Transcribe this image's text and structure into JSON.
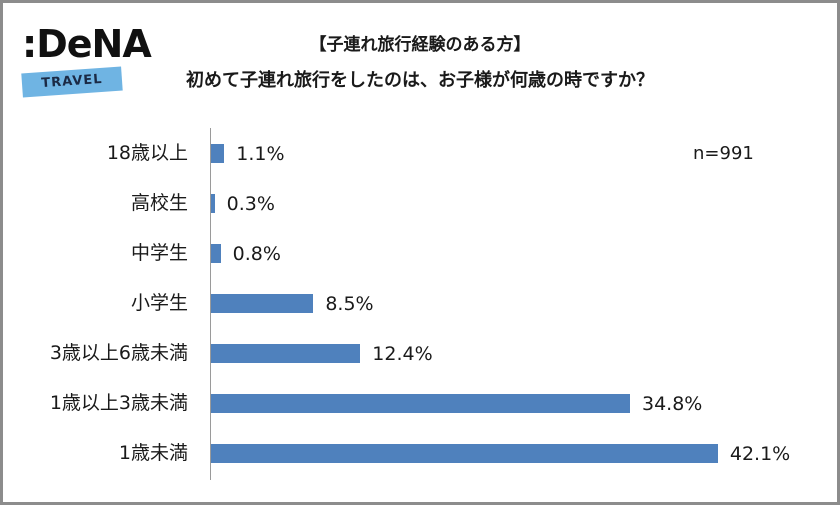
{
  "logo": {
    "brand": ":DeNA",
    "sub": "TRAVEL",
    "band_color": "#6fb4e3"
  },
  "header": {
    "subtitle": "【子連れ旅行経験のある方】",
    "title": "初めて子連れ旅行をしたのは、お子様が何歳の時ですか？"
  },
  "sample": "n=991",
  "chart_data": {
    "type": "bar",
    "orientation": "horizontal",
    "title": "初めて子連れ旅行をしたのは、お子様が何歳の時ですか？",
    "subtitle": "【子連れ旅行経験のある方】",
    "categories": [
      "18歳以上",
      "高校生",
      "中学生",
      "小学生",
      "3歳以上6歳未満",
      "1歳以上3歳未満",
      "1歳未満"
    ],
    "values": [
      1.1,
      0.3,
      0.8,
      8.5,
      12.4,
      34.8,
      42.1
    ],
    "labels": [
      "1.1%",
      "0.3%",
      "0.8%",
      "8.5%",
      "12.4%",
      "34.8%",
      "42.1%"
    ],
    "unit": "%",
    "annotation": "n=991",
    "xlabel": "",
    "ylabel": "",
    "xlim": [
      0,
      45
    ],
    "grid": false,
    "legend": "none",
    "bar_color": "#4f81bd"
  }
}
